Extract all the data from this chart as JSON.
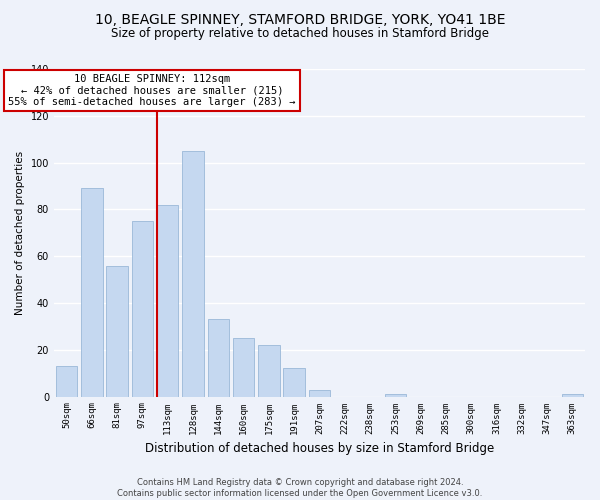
{
  "title": "10, BEAGLE SPINNEY, STAMFORD BRIDGE, YORK, YO41 1BE",
  "subtitle": "Size of property relative to detached houses in Stamford Bridge",
  "xlabel": "Distribution of detached houses by size in Stamford Bridge",
  "ylabel": "Number of detached properties",
  "bar_labels": [
    "50sqm",
    "66sqm",
    "81sqm",
    "97sqm",
    "113sqm",
    "128sqm",
    "144sqm",
    "160sqm",
    "175sqm",
    "191sqm",
    "207sqm",
    "222sqm",
    "238sqm",
    "253sqm",
    "269sqm",
    "285sqm",
    "300sqm",
    "316sqm",
    "332sqm",
    "347sqm",
    "363sqm"
  ],
  "bar_heights": [
    13,
    89,
    56,
    75,
    82,
    105,
    33,
    25,
    22,
    12,
    3,
    0,
    0,
    1,
    0,
    0,
    0,
    0,
    0,
    0,
    1
  ],
  "bar_color": "#c5d8f0",
  "bar_edge_color": "#9ab8d8",
  "vline_color": "#cc0000",
  "annotation_line1": "10 BEAGLE SPINNEY: 112sqm",
  "annotation_line2": "← 42% of detached houses are smaller (215)",
  "annotation_line3": "55% of semi-detached houses are larger (283) →",
  "ylim": [
    0,
    140
  ],
  "yticks": [
    0,
    20,
    40,
    60,
    80,
    100,
    120,
    140
  ],
  "footer_text": "Contains HM Land Registry data © Crown copyright and database right 2024.\nContains public sector information licensed under the Open Government Licence v3.0.",
  "background_color": "#eef2fa",
  "grid_color": "#ffffff",
  "title_fontsize": 10,
  "subtitle_fontsize": 8.5,
  "xlabel_fontsize": 8.5,
  "ylabel_fontsize": 7.5,
  "annotation_fontsize": 7.5,
  "footer_fontsize": 6.0,
  "tick_fontsize": 6.5
}
